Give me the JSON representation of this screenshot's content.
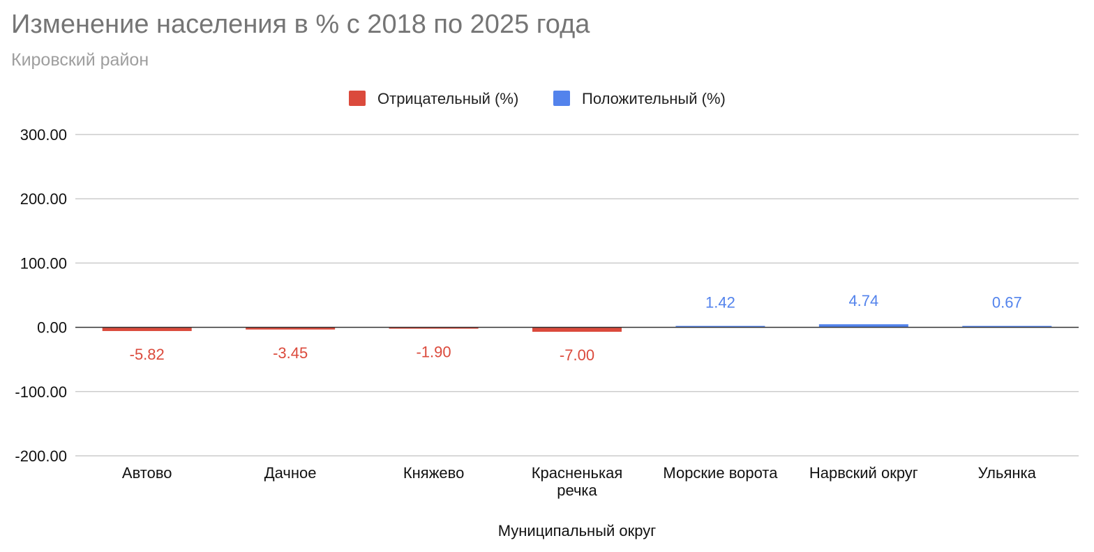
{
  "colors": {
    "negative": "#db4a3c",
    "positive": "#5383ec",
    "grid": "#cccccc",
    "zero_line": "#333333"
  },
  "chart_data": {
    "type": "bar",
    "title": "Изменение населения в % с 2018 по 2025 года",
    "subtitle": "Кировский район",
    "xlabel": "Муниципальный округ",
    "ylabel": "",
    "ylim": [
      -200,
      300
    ],
    "yticks": [
      "300.00",
      "200.00",
      "100.00",
      "0.00",
      "-100.00",
      "-200.00"
    ],
    "yticks_values": [
      300,
      200,
      100,
      0,
      -100,
      -200
    ],
    "grid": true,
    "legend_position": "top",
    "categories": [
      [
        "Автово"
      ],
      [
        "Дачное"
      ],
      [
        "Княжево"
      ],
      [
        "Красненькая",
        "речка"
      ],
      [
        "Морские ворота"
      ],
      [
        "Нарвский округ"
      ],
      [
        "Ульянка"
      ]
    ],
    "series": [
      {
        "name": "Отрицательный (%)",
        "color": "#db4a3c",
        "values": [
          -5.82,
          -3.45,
          -1.9,
          -7.0,
          null,
          null,
          null
        ],
        "labels": [
          "-5.82",
          "-3.45",
          "-1.90",
          "-7.00",
          "",
          "",
          ""
        ]
      },
      {
        "name": "Положительный (%)",
        "color": "#5383ec",
        "values": [
          null,
          null,
          null,
          null,
          1.42,
          4.74,
          0.67
        ],
        "labels": [
          "",
          "",
          "",
          "",
          "1.42",
          "4.74",
          "0.67"
        ]
      }
    ]
  }
}
